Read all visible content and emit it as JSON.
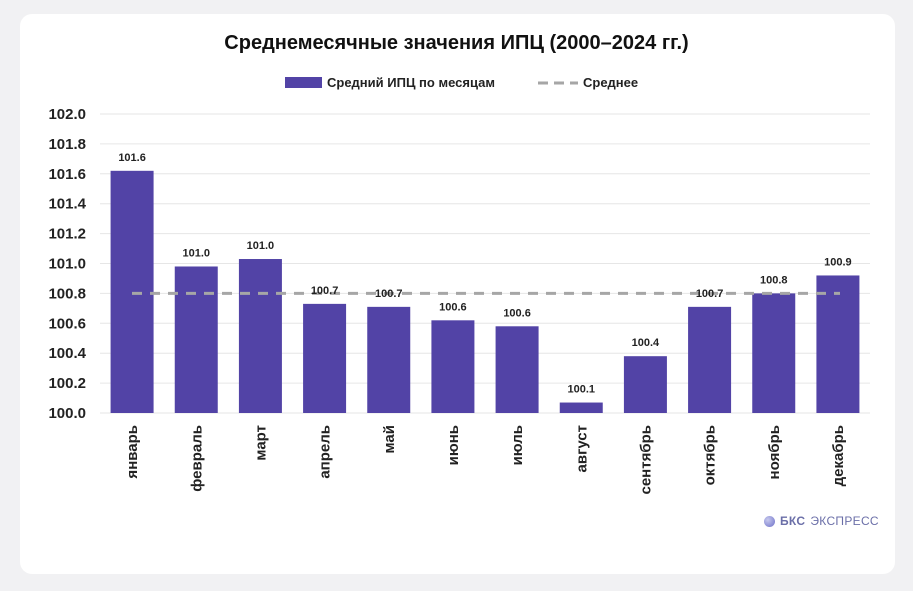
{
  "chart_data": {
    "type": "bar",
    "title": "Среднемесячные значения ИПЦ (2000–2024 гг.)",
    "xlabel": "",
    "ylabel": "",
    "categories": [
      "январь",
      "февраль",
      "март",
      "апрель",
      "май",
      "июнь",
      "июль",
      "август",
      "сентябрь",
      "октябрь",
      "ноябрь",
      "декабрь"
    ],
    "series": [
      {
        "name": "Средний ИПЦ по месяцам",
        "color": "#5243a6",
        "values": [
          101.62,
          100.98,
          101.03,
          100.73,
          100.71,
          100.62,
          100.58,
          100.07,
          100.38,
          100.71,
          100.8,
          100.92
        ],
        "data_labels": [
          "101.6",
          "101.0",
          "101.0",
          "100.7",
          "100.7",
          "100.6",
          "100.6",
          "100.1",
          "100.4",
          "100.7",
          "100.8",
          "100.9"
        ]
      }
    ],
    "reference_line": {
      "name": "Среднее",
      "value": 100.8,
      "color": "#a6a6a6",
      "style": "dashed"
    },
    "ylim": [
      100.0,
      102.0
    ],
    "yticks": [
      "100.0",
      "100.2",
      "100.4",
      "100.6",
      "100.8",
      "101.0",
      "101.2",
      "101.4",
      "101.6",
      "101.8",
      "102.0"
    ],
    "grid": true,
    "legend_position": "top-center"
  },
  "brand": {
    "name": "БКС",
    "sub": "ЭКСПРЕСС"
  }
}
